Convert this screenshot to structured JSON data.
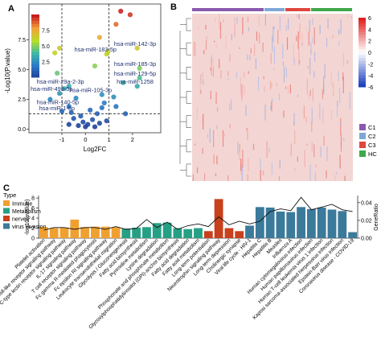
{
  "panel_labels": {
    "a": "A",
    "b": "B",
    "c": "C"
  },
  "colors": {
    "immune": "#F0A030",
    "metabolism": "#26A085",
    "nerves": "#C8401C",
    "virus_invasion": "#3B7A9A",
    "cluster_c1": "#8A5AAE",
    "cluster_c2": "#7FA7D6",
    "cluster_c3": "#E0463C",
    "cluster_hc": "#3FA84A",
    "heat_high": "#E02020",
    "heat_low": "#2040C0"
  },
  "chart_data": [
    {
      "panel": "A",
      "type": "scatter",
      "xlabel": "Log2FC",
      "ylabel": "-Log10(P.value)",
      "xlim": [
        -2.4,
        3.2
      ],
      "ylim": [
        -0.3,
        10.5
      ],
      "xticks": [
        "-1",
        "0",
        "1",
        "2"
      ],
      "yticks": [
        "0.0",
        "2.5",
        "5.0",
        "7.5"
      ],
      "colorbar": {
        "ticks": [
          "7.5",
          "5.0",
          "2.5"
        ]
      },
      "thresholds": {
        "x": [
          -1,
          1
        ],
        "y": 1.3
      },
      "labeled_points": [
        {
          "label": "hsa-miR-142-3p",
          "x": 2.2,
          "y": 6.8
        },
        {
          "label": "hsa-miR-183-5p",
          "x": 0.9,
          "y": 6.3
        },
        {
          "label": "hsa-miR-185-3p",
          "x": 2.3,
          "y": 5.1
        },
        {
          "label": "hsa-miR-129-5p",
          "x": 2.3,
          "y": 4.3
        },
        {
          "label": "hsa-miR-1258",
          "x": 2.2,
          "y": 3.6
        },
        {
          "label": "hsa-miR-29a-2-3p",
          "x": -0.7,
          "y": 3.6
        },
        {
          "label": "hsa-miR-499-5p",
          "x": -1.1,
          "y": 3.0
        },
        {
          "label": "hsa-miR-105-3p",
          "x": 0.7,
          "y": 2.9
        },
        {
          "label": "hsa-miR-140-5p",
          "x": -0.7,
          "y": 1.9
        },
        {
          "label": "hsa-miR-1-5p",
          "x": -0.6,
          "y": 1.4
        }
      ],
      "other_points": [
        {
          "x": 1.5,
          "y": 9.9
        },
        {
          "x": 1.9,
          "y": 9.6
        },
        {
          "x": 1.3,
          "y": 8.8
        },
        {
          "x": 0.6,
          "y": 7.7
        },
        {
          "x": 0.95,
          "y": 6.5
        },
        {
          "x": 0.4,
          "y": 5.3
        },
        {
          "x": -1.1,
          "y": 6.8
        },
        {
          "x": -1.3,
          "y": 6.4
        },
        {
          "x": -1.2,
          "y": 4.7
        },
        {
          "x": 1.6,
          "y": 3.9
        },
        {
          "x": -0.9,
          "y": 3.4
        },
        {
          "x": 0.8,
          "y": 2.2
        },
        {
          "x": -0.4,
          "y": 2.6
        },
        {
          "x": 1.2,
          "y": 2.7
        },
        {
          "x": -1.5,
          "y": 2.5
        },
        {
          "x": 1.3,
          "y": 1.9
        },
        {
          "x": 0.2,
          "y": 1.6
        },
        {
          "x": -0.2,
          "y": 1.1
        },
        {
          "x": 0.5,
          "y": 1.3
        },
        {
          "x": -0.5,
          "y": 0.9
        },
        {
          "x": 0.3,
          "y": 0.8
        },
        {
          "x": 0.1,
          "y": 0.4
        },
        {
          "x": -0.1,
          "y": 0.6
        },
        {
          "x": 0.6,
          "y": 0.5
        },
        {
          "x": -0.7,
          "y": 0.4
        },
        {
          "x": 0.9,
          "y": 0.7
        },
        {
          "x": 0.0,
          "y": 0.2
        },
        {
          "x": -0.3,
          "y": 0.3
        },
        {
          "x": 0.4,
          "y": 0.2
        },
        {
          "x": 1.7,
          "y": 1.3
        },
        {
          "x": -1.0,
          "y": 1.5
        },
        {
          "x": 0.7,
          "y": 1.8
        }
      ]
    },
    {
      "panel": "B",
      "type": "heatmap",
      "legend": {
        "ticks": [
          "6",
          "4",
          "2",
          "0",
          "-2",
          "-4",
          "-6"
        ]
      },
      "groups": [
        {
          "label": "C1",
          "fraction": 0.45
        },
        {
          "label": "C2",
          "fraction": 0.13
        },
        {
          "label": "C3",
          "fraction": 0.16
        },
        {
          "label": "HC",
          "fraction": 0.26
        }
      ]
    },
    {
      "panel": "C",
      "type": "bar",
      "ylabel": "-log10(pvalue)",
      "y2label": "GeneRatio",
      "ylim": [
        0,
        8.5
      ],
      "yticks": [
        "0",
        "2",
        "4",
        "6",
        "8"
      ],
      "y2lim": [
        0,
        0.048
      ],
      "y2ticks": [
        "0.00",
        "0.02",
        "0.04"
      ],
      "legend": {
        "title": "Type",
        "items": [
          "Immune",
          "Metabolism",
          "nerves",
          "virus invasion"
        ]
      },
      "categories": [
        "Platelet activation",
        "Toll-like receptor signaling pathway",
        "C-type lectin receptor signaling pathway",
        "IL-17 signaling pathway",
        "T cell receptor signaling pathway",
        "Fc gamma R-mediated phagocytosis",
        "Fc epsilon RI signaling pathway",
        "Leukocyte transendothelial migration",
        "Glycolysis / Gluconeogenesis",
        "Fatty acid biosynthesis",
        "Pyrimidine metabolism",
        "Lysine degradation",
        "Phosphonate and phosphinate metabolism",
        "Glycosylphosphatidylinositol (GPI)-anchor biosynthesis",
        "Fatty acid degradation",
        "Fatty acid metabolism",
        "Long-term potentiation",
        "Neurotrophin signaling pathway",
        "Long-term depression",
        "Cholinergic synapse",
        "Viral life cycle - HIV-1",
        "Hepatitis C",
        "Hepatitis B",
        "Measles",
        "Influenza A",
        "Human cytomegalovirus infection",
        "Human papillomavirus infection",
        "Human T-cell leukemia virus 1 infection",
        "Kaposi sarcoma-associated herpesvirus infection",
        "Epstein-Barr virus infection",
        "Coronavirus disease - COVID-19"
      ],
      "types": [
        "Immune",
        "Immune",
        "Immune",
        "Immune",
        "Immune",
        "Immune",
        "Immune",
        "Immune",
        "Metabolism",
        "Metabolism",
        "Metabolism",
        "Metabolism",
        "Metabolism",
        "Metabolism",
        "Metabolism",
        "Metabolism",
        "nerves",
        "nerves",
        "nerves",
        "nerves",
        "virus invasion",
        "virus invasion",
        "virus invasion",
        "virus invasion",
        "virus invasion",
        "virus invasion",
        "virus invasion",
        "virus invasion",
        "virus invasion",
        "virus invasion",
        "virus invasion"
      ],
      "values": [
        2.2,
        2.0,
        2.1,
        3.7,
        2.2,
        2.3,
        2.3,
        2.2,
        1.9,
        2.1,
        2.2,
        3.0,
        3.1,
        2.0,
        1.8,
        2.0,
        1.4,
        7.8,
        2.0,
        1.4,
        2.5,
        6.2,
        6.1,
        5.3,
        5.2,
        6.2,
        5.8,
        6.1,
        5.7,
        5.4,
        1.2
      ],
      "gene_ratio": [
        0.009,
        0.012,
        0.012,
        0.01,
        0.012,
        0.012,
        0.01,
        0.013,
        0.01,
        0.011,
        0.021,
        0.012,
        0.018,
        0.01,
        0.014,
        0.016,
        0.013,
        0.024,
        0.015,
        0.019,
        0.016,
        0.019,
        0.03,
        0.033,
        0.031,
        0.046,
        0.032,
        0.035,
        0.038,
        0.032,
        0.03
      ]
    }
  ]
}
